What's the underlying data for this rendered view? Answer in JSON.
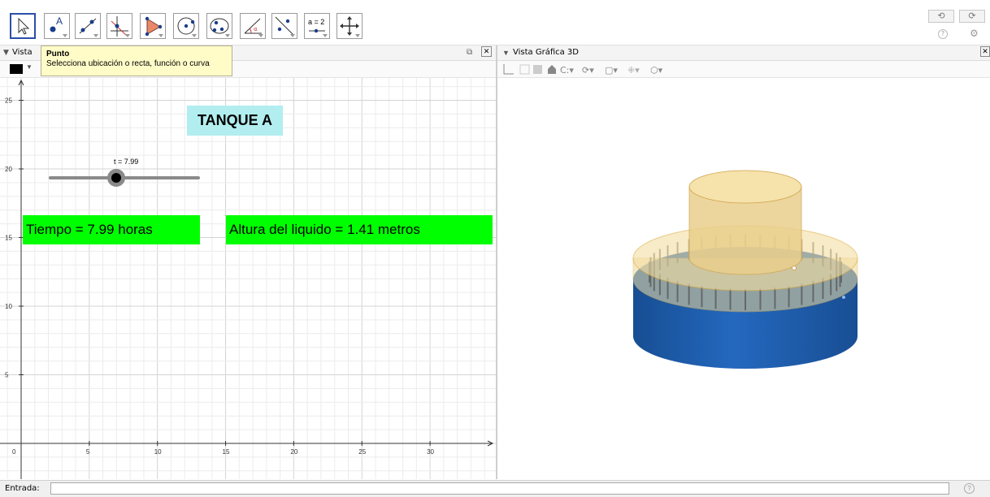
{
  "toolbar": {
    "tools": [
      {
        "name": "move-tool",
        "active": true
      },
      {
        "name": "point-tool",
        "active": false,
        "glyph": "A"
      },
      {
        "name": "line-tool",
        "active": false
      },
      {
        "name": "perpendicular-tool",
        "active": false
      },
      {
        "name": "polygon-tool",
        "active": false
      },
      {
        "name": "circle-tool",
        "active": false
      },
      {
        "name": "conic-tool",
        "active": false
      },
      {
        "name": "angle-tool",
        "active": false
      },
      {
        "name": "reflect-tool",
        "active": false
      },
      {
        "name": "slider-tool",
        "active": false,
        "glyph": "a = 2"
      },
      {
        "name": "move-view-tool",
        "active": false
      }
    ],
    "undo_glyph": "⟲",
    "redo_glyph": "⟳",
    "help_glyph": "?",
    "settings_glyph": "⚙"
  },
  "tooltip": {
    "title": "Punto",
    "text": "Selecciona ubicación o recta, función o curva"
  },
  "left_panel": {
    "title": "Vista"
  },
  "right_panel": {
    "title": "Vista Gráfica 3D"
  },
  "graphics": {
    "title_label": "TANQUE A",
    "slider_label": "t = 7.99",
    "slider_value": 7.99,
    "slider_min": 0,
    "slider_max": 18,
    "time_text": "Tiempo  =  7.99 horas",
    "height_text": "Altura del liquido  =  1.41  metros",
    "x_ticks": [
      "0",
      "5",
      "10",
      "15",
      "20",
      "25",
      "30"
    ],
    "y_ticks": [
      "25",
      "20",
      "15",
      "10",
      "5"
    ],
    "colors": {
      "title_bg": "#b2eef0",
      "green_bg": "#00ff00",
      "grid": "#e6e6e6",
      "axis": "#333333",
      "tank_blue": "#1e5fae",
      "tank_liquid": "#f5d98a"
    }
  },
  "input_bar": {
    "label": "Entrada:",
    "value": "",
    "help_glyph": "?"
  }
}
